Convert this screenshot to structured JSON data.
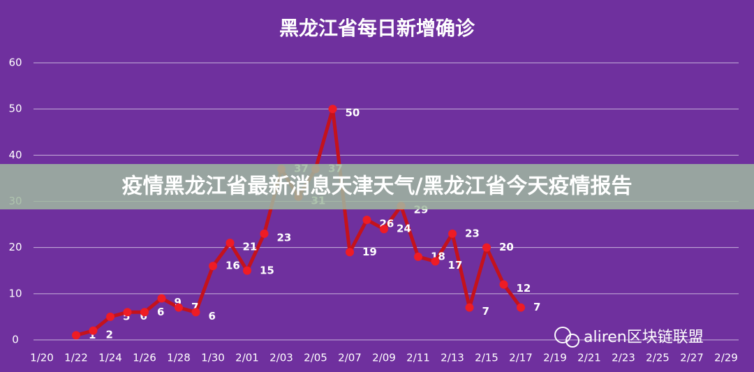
{
  "chart_data": {
    "type": "line",
    "title": "黑龙江省每日新增确诊",
    "categories": [
      "1/20",
      null,
      "1/22",
      null,
      "1/24",
      null,
      "1/26",
      null,
      "1/28",
      null,
      "1/30",
      null,
      "2/01",
      null,
      "2/03",
      null,
      "2/05",
      null,
      "2/07",
      null,
      "2/09",
      null,
      "2/11",
      null,
      "2/13",
      null,
      "2/15",
      null,
      "2/17",
      null,
      "2/19",
      null,
      "2/21",
      null,
      "2/23",
      null,
      "2/25",
      null,
      "2/27",
      null,
      "2/29"
    ],
    "values": [
      null,
      null,
      1,
      2,
      5,
      6,
      6,
      9,
      7,
      6,
      16,
      21,
      15,
      23,
      37,
      31,
      37,
      50,
      19,
      26,
      24,
      29,
      18,
      17,
      23,
      7,
      20,
      12,
      7,
      null,
      null,
      null,
      null,
      null,
      null,
      null,
      null,
      null,
      null,
      null,
      null
    ],
    "color": "#c4121c",
    "ylim": [
      0,
      60
    ],
    "yticks": [
      0,
      10,
      20,
      30,
      40,
      50,
      60
    ],
    "grid": true
  },
  "overlay": {
    "text": "疫情黑龙江省最新消息天津天气/黑龙江省今天疫情报告"
  },
  "watermark": {
    "text": "aliren区块链联盟"
  }
}
